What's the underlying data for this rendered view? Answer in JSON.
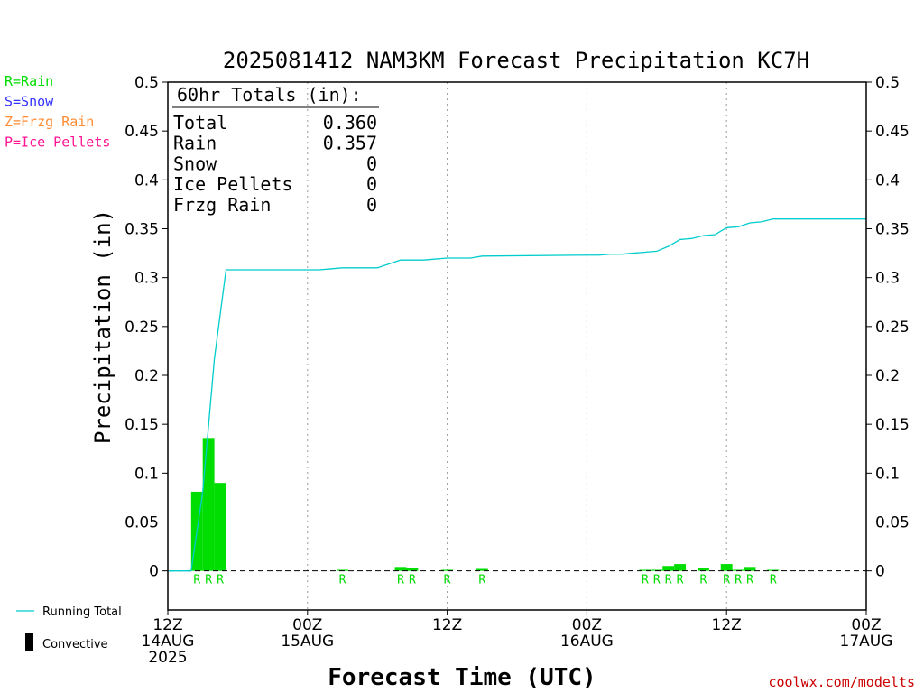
{
  "chart_data": {
    "type": "bar",
    "title": "2025081412 NAM3KM Forecast Precipitation KC7H",
    "xlabel": "Forecast Time (UTC)",
    "ylabel": "Precipitation (in)",
    "ylim": [
      -0.04,
      0.5
    ],
    "xlim_hours": [
      0,
      60
    ],
    "yticks": [
      "0.5",
      "0.45",
      "0.4",
      "0.35",
      "0.3",
      "0.25",
      "0.2",
      "0.15",
      "0.1",
      "0.05",
      "0"
    ],
    "ytick_values": [
      0.5,
      0.45,
      0.4,
      0.35,
      0.3,
      0.25,
      0.2,
      0.15,
      0.1,
      0.05,
      0
    ],
    "xticks": [
      {
        "hour": 0,
        "line1": "12Z",
        "line2": "14AUG",
        "line3": "2025"
      },
      {
        "hour": 12,
        "line1": "00Z",
        "line2": "15AUG",
        "line3": ""
      },
      {
        "hour": 24,
        "line1": "12Z",
        "line2": "",
        "line3": ""
      },
      {
        "hour": 36,
        "line1": "00Z",
        "line2": "16AUG",
        "line3": ""
      },
      {
        "hour": 48,
        "line1": "12Z",
        "line2": "",
        "line3": ""
      },
      {
        "hour": 60,
        "line1": "00Z",
        "line2": "17AUG",
        "line3": ""
      }
    ],
    "grid_hours": [
      12,
      24,
      36,
      48
    ],
    "bars": [
      {
        "hour": 2.5,
        "value": 0.081,
        "type": "R"
      },
      {
        "hour": 3.5,
        "value": 0.136,
        "type": "R"
      },
      {
        "hour": 4.5,
        "value": 0.09,
        "type": "R"
      },
      {
        "hour": 15,
        "value": 0.0005,
        "type": "R"
      },
      {
        "hour": 20,
        "value": 0.004,
        "type": "R"
      },
      {
        "hour": 21,
        "value": 0.003,
        "type": "R"
      },
      {
        "hour": 24,
        "value": 0.001,
        "type": "R"
      },
      {
        "hour": 27,
        "value": 0.002,
        "type": "R"
      },
      {
        "hour": 41,
        "value": 0.001,
        "type": "R"
      },
      {
        "hour": 42,
        "value": 0.001,
        "type": "R"
      },
      {
        "hour": 43,
        "value": 0.005,
        "type": "R"
      },
      {
        "hour": 44,
        "value": 0.007,
        "type": "R"
      },
      {
        "hour": 46,
        "value": 0.003,
        "type": "R"
      },
      {
        "hour": 48,
        "value": 0.007,
        "type": "R"
      },
      {
        "hour": 49,
        "value": 0.001,
        "type": "R"
      },
      {
        "hour": 50,
        "value": 0.004,
        "type": "R"
      },
      {
        "hour": 52,
        "value": 0.001,
        "type": "R"
      }
    ],
    "series": [
      {
        "name": "Running Total",
        "x": [
          0,
          1,
          2,
          3,
          4,
          5,
          12,
          13,
          14,
          15,
          16,
          17,
          18,
          19,
          20,
          21,
          22,
          23,
          24,
          25,
          26,
          27,
          36,
          37,
          38,
          39,
          40,
          41,
          42,
          43,
          44,
          45,
          46,
          47,
          48,
          49,
          50,
          51,
          52,
          60
        ],
        "y": [
          0,
          0,
          0,
          0.081,
          0.217,
          0.308,
          0.308,
          0.308,
          0.309,
          0.31,
          0.31,
          0.31,
          0.31,
          0.314,
          0.318,
          0.318,
          0.318,
          0.319,
          0.32,
          0.32,
          0.32,
          0.322,
          0.323,
          0.323,
          0.324,
          0.324,
          0.325,
          0.326,
          0.327,
          0.332,
          0.339,
          0.34,
          0.343,
          0.344,
          0.351,
          0.352,
          0.356,
          0.357,
          0.36,
          0.36
        ]
      }
    ],
    "totals": {
      "header": "60hr Totals (in):",
      "rows": [
        {
          "label": "Total",
          "value": "0.360"
        },
        {
          "label": "Rain",
          "value": "0.357"
        },
        {
          "label": "Snow",
          "value": "0"
        },
        {
          "label": "Ice Pellets",
          "value": "0"
        },
        {
          "label": "Frzg Rain",
          "value": "0"
        }
      ]
    },
    "legend_types": [
      {
        "text": "R=Rain",
        "color": "#00dd00"
      },
      {
        "text": "S=Snow",
        "color": "#3333ff"
      },
      {
        "text": "Z=Frzg Rain",
        "color": "#ff8c33"
      },
      {
        "text": "P=Ice Pellets",
        "color": "#ff1493"
      }
    ],
    "legend_lines": [
      {
        "text": "Running Total",
        "color": "#00cccc"
      },
      {
        "text": "Convective",
        "color": "#000000"
      }
    ],
    "colors": {
      "rain_bar": "#00dd00",
      "running_total": "#00cccc",
      "grid": "#999999",
      "watermark": "#cc0000"
    },
    "watermark": "coolwx.com/modelts"
  }
}
